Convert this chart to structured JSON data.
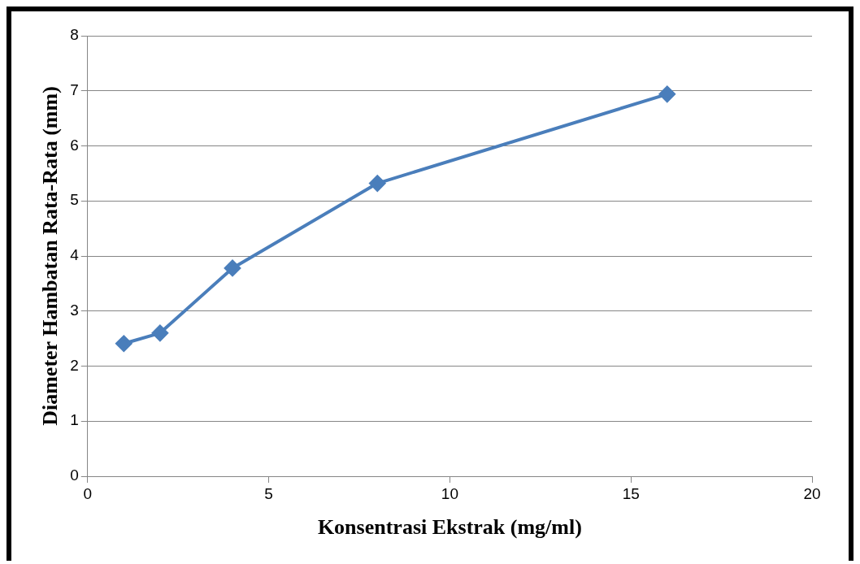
{
  "chart_data": {
    "type": "line",
    "xlabel": "Konsentrasi Ekstrak (mg/ml)",
    "ylabel": "Diameter Hambatan Rata-Rata (mm)",
    "x": [
      1,
      2,
      4,
      8,
      16
    ],
    "series": [
      {
        "color": "#4a7ebb",
        "values": [
          2.41,
          2.6,
          3.78,
          5.32,
          6.94
        ]
      }
    ],
    "xlim": [
      0,
      20
    ],
    "xticks": [
      0,
      5,
      10,
      15,
      20
    ],
    "ylim": [
      0,
      8
    ],
    "yticks": [
      0,
      1,
      2,
      3,
      4,
      5,
      6,
      7,
      8
    ],
    "grid": "y",
    "legend": false,
    "marker": "diamond",
    "line_style": "solid"
  }
}
